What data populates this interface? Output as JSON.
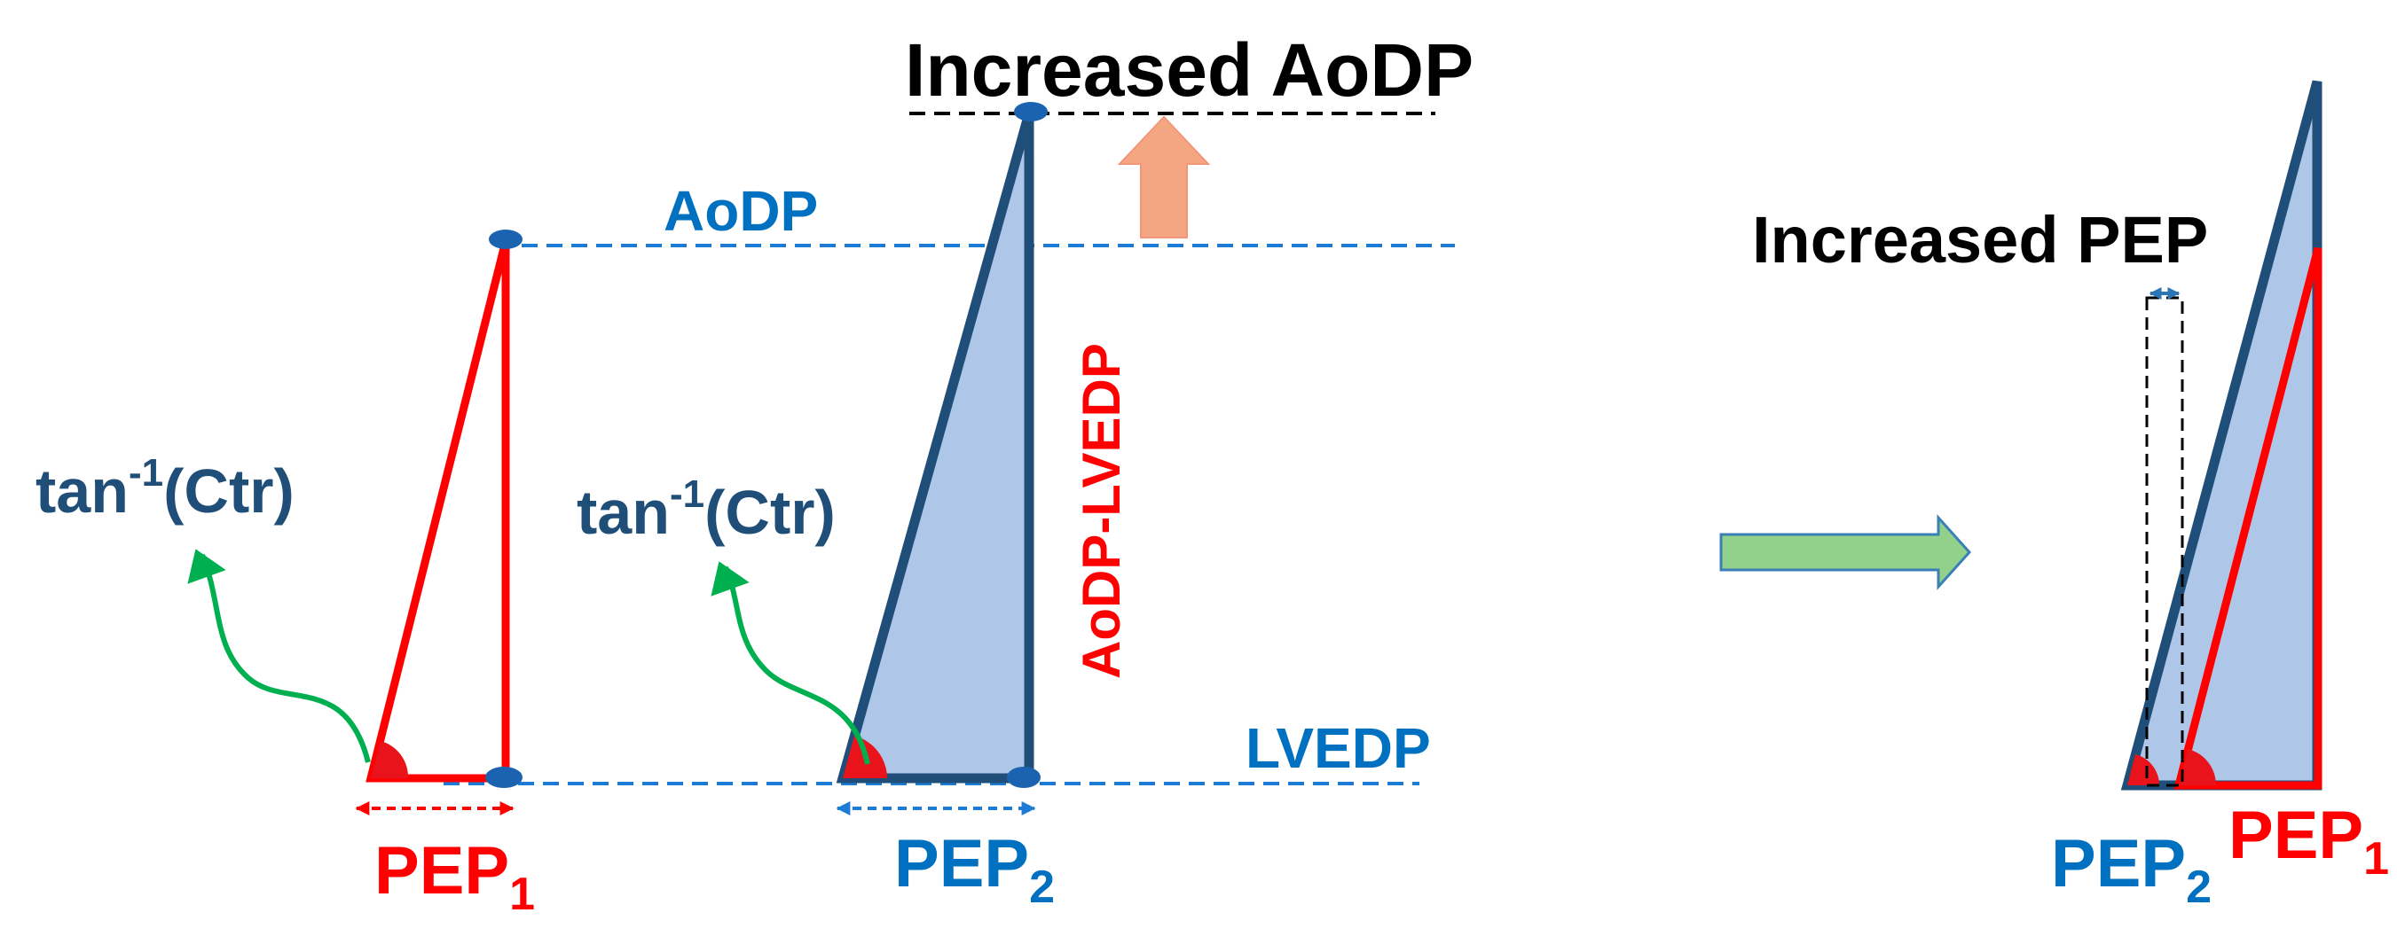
{
  "title": "Increased AoDP",
  "right_title": "Increased PEP",
  "labels": {
    "aodp": "AoDP",
    "lvedp": "LVEDP",
    "aodp_minus_lvedp": "AoDP-LVEDP",
    "tan_base": "tan",
    "tan_exp": "-1",
    "tan_arg": "(Ctr)",
    "pep": "PEP",
    "sub_1": "1",
    "sub_2": "2"
  },
  "colors": {
    "red": "#ff0000",
    "blue_text": "#0070c0",
    "dark_blue": "#1f4e79",
    "navy": "#1b5291",
    "dash_blue": "#1c7bd4",
    "fill_blue": "#aec6e8",
    "green": "#00b050",
    "arrow_orange": "#f4a582",
    "arrow_green": "#92d18c"
  },
  "icons": {
    "up_arrow": "up-arrow-icon",
    "right_arrow": "right-arrow-icon",
    "curved_arrow": "curved-arrow-icon"
  }
}
